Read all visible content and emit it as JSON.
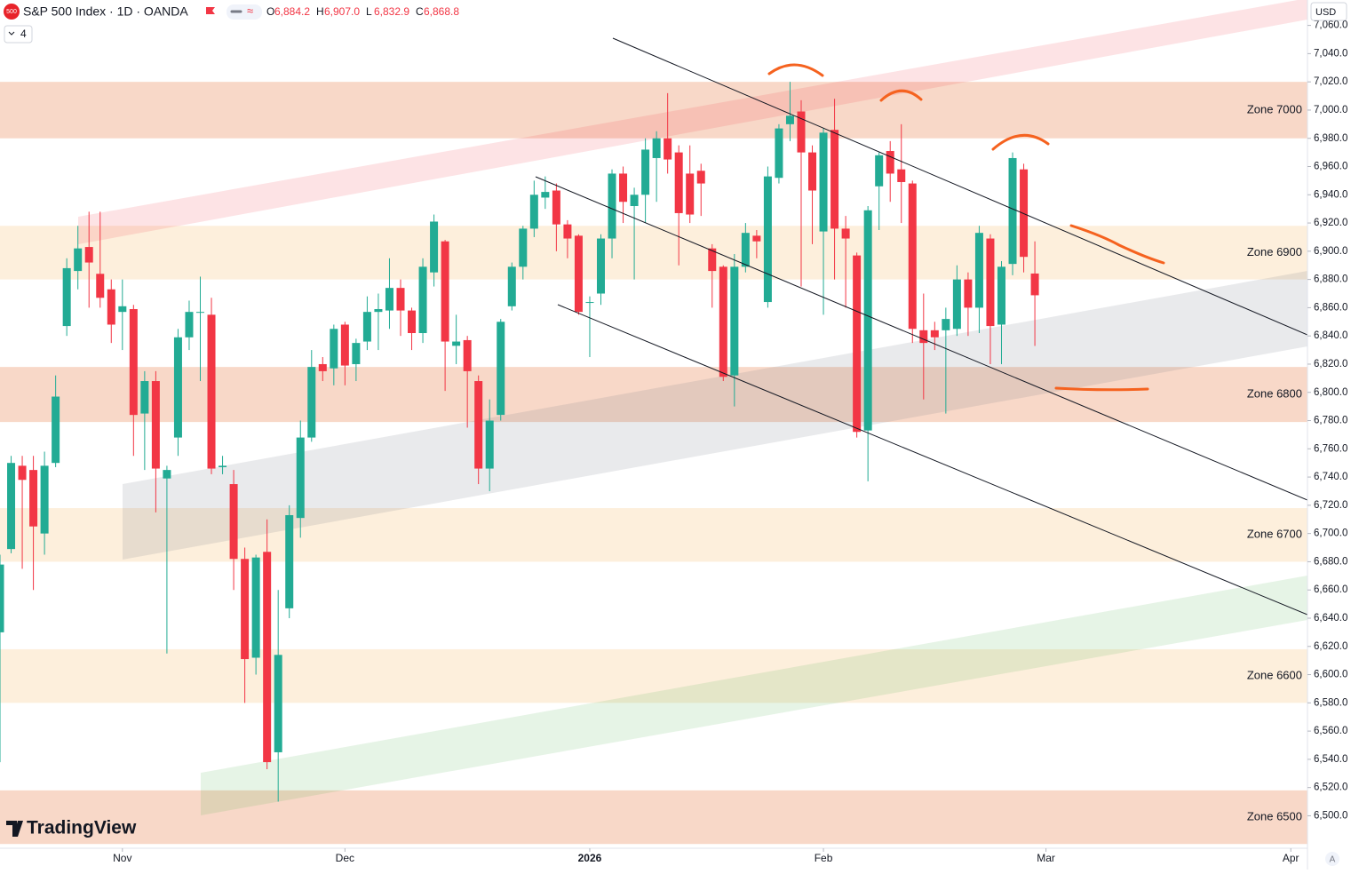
{
  "header": {
    "badge": "500",
    "symbol": "S&P 500 Index · 1D · OANDA",
    "ohlc": [
      {
        "key": "O",
        "value": "6,884.2"
      },
      {
        "key": "H",
        "value": "6,907.0"
      },
      {
        "key": "L",
        "value": "6,832.9"
      },
      {
        "key": "C",
        "value": "6,868.8"
      }
    ],
    "indicator_count": "4",
    "currency": "USD",
    "logo": "TradingView",
    "scale_mode": "A"
  },
  "chart_data": {
    "type": "candlestick",
    "up_color": "#22ab94",
    "down_color": "#f23645",
    "x": [
      0,
      1,
      2,
      3,
      4,
      5,
      6,
      7,
      8,
      9,
      10,
      11,
      12,
      13,
      14,
      15,
      16,
      17,
      18,
      19,
      20,
      21,
      22,
      23,
      24,
      25,
      26,
      27,
      28,
      29,
      30,
      31,
      32,
      33,
      34,
      35,
      36,
      37,
      38,
      39,
      40,
      41,
      42,
      43,
      44,
      45,
      46,
      47,
      48,
      49,
      50,
      51,
      52,
      53,
      54,
      55,
      56,
      57,
      58,
      59,
      60,
      61,
      62,
      63,
      64,
      65,
      66,
      67,
      68,
      69,
      70,
      71,
      72,
      73,
      74,
      75,
      76,
      77,
      78,
      79,
      80,
      81,
      82,
      83,
      84,
      85,
      86,
      87,
      88,
      89,
      90,
      91,
      92,
      93
    ],
    "open": [
      6630,
      6689,
      6748,
      6745,
      6700,
      6750,
      6847,
      6886,
      6903,
      6884,
      6873,
      6857,
      6859,
      6785,
      6808,
      6739,
      6768,
      6839,
      6857,
      6855,
      6747,
      6735,
      6682,
      6612,
      6687,
      6545,
      6647,
      6711,
      6768,
      6820,
      6817,
      6848,
      6820,
      6836,
      6857,
      6858,
      6874,
      6858,
      6842,
      6885,
      6907,
      6833,
      6837,
      6808,
      6746,
      6784,
      6861,
      6889,
      6916,
      6938,
      6943,
      6919,
      6911,
      6864,
      6870,
      6909,
      6955,
      6932,
      6940,
      6966,
      6980,
      6970,
      6955,
      6957,
      6902,
      6889,
      6812,
      6889,
      6911,
      6864,
      6952,
      6990,
      6999,
      6970,
      6914,
      6986,
      6916,
      6897,
      6773,
      6946,
      6971,
      6958,
      6948,
      6844,
      6844,
      6844,
      6845,
      6880,
      6860,
      6909,
      6848,
      6891,
      6958,
      6884.2
    ],
    "high": [
      6685,
      6755,
      6755,
      6755,
      6758,
      6812,
      6895,
      6918,
      6928,
      6928,
      6880,
      6880,
      6862,
      6815,
      6815,
      6748,
      6845,
      6865,
      6882,
      6867,
      6755,
      6745,
      6690,
      6685,
      6710,
      6660,
      6720,
      6780,
      6830,
      6825,
      6848,
      6850,
      6838,
      6868,
      6870,
      6895,
      6880,
      6860,
      6895,
      6926,
      6908,
      6855,
      6840,
      6812,
      6795,
      6852,
      6892,
      6918,
      6950,
      6953,
      6948,
      6922,
      6912,
      6868,
      6912,
      6958,
      6960,
      6945,
      6980,
      6985,
      7012,
      6975,
      6975,
      6962,
      6905,
      6890,
      6898,
      6920,
      6915,
      6960,
      6990,
      7020,
      7007,
      6975,
      6987,
      7008,
      6925,
      6899,
      6932,
      6970,
      6978,
      6990,
      6950,
      6870,
      6850,
      6860,
      6890,
      6885,
      6918,
      6912,
      6893,
      6970,
      6962,
      6907
    ],
    "low": [
      6538,
      6686,
      6675,
      6660,
      6685,
      6747,
      6840,
      6873,
      6860,
      6860,
      6835,
      6830,
      6755,
      6745,
      6715,
      6615,
      6755,
      6830,
      6808,
      6742,
      6742,
      6660,
      6580,
      6600,
      6533,
      6510,
      6640,
      6697,
      6765,
      6808,
      6805,
      6805,
      6808,
      6830,
      6830,
      6845,
      6840,
      6830,
      6835,
      6875,
      6801,
      6820,
      6775,
      6735,
      6730,
      6780,
      6858,
      6880,
      6910,
      6930,
      6900,
      6895,
      6855,
      6825,
      6862,
      6895,
      6920,
      6880,
      6920,
      6935,
      6955,
      6890,
      6920,
      6925,
      6860,
      6808,
      6790,
      6885,
      6895,
      6860,
      6948,
      6978,
      6875,
      6905,
      6855,
      6880,
      6860,
      6768,
      6737,
      6915,
      6935,
      6920,
      6835,
      6795,
      6830,
      6785,
      6840,
      6840,
      6842,
      6820,
      6820,
      6883,
      6885,
      6832.9
    ],
    "close": [
      6678,
      6750,
      6738,
      6705,
      6748,
      6797,
      6888,
      6902,
      6892,
      6867,
      6848,
      6861,
      6784,
      6808,
      6746,
      6745,
      6839,
      6857,
      6857,
      6746,
      6748,
      6682,
      6611,
      6683,
      6538,
      6614,
      6713,
      6768,
      6818,
      6815,
      6845,
      6819,
      6835,
      6857,
      6859,
      6874,
      6858,
      6842,
      6889,
      6921,
      6836,
      6836,
      6815,
      6746,
      6780,
      6850,
      6889,
      6916,
      6940,
      6942,
      6919,
      6909,
      6857,
      6864,
      6909,
      6955,
      6935,
      6940,
      6972,
      6980,
      6965,
      6927,
      6926,
      6948,
      6886,
      6811,
      6889,
      6913,
      6907,
      6953,
      6987,
      6996,
      6970,
      6943,
      6984,
      6916,
      6909,
      6772,
      6929,
      6968,
      6955,
      6949,
      6845,
      6835,
      6839,
      6852,
      6880,
      6860,
      6913,
      6847,
      6889,
      6966,
      6896,
      6868.8
    ],
    "zones": [
      {
        "label": "Zone 7000",
        "low": 6980,
        "high": 7020,
        "color": "#f8d8c8"
      },
      {
        "label": "Zone 6900",
        "low": 6880,
        "high": 6918,
        "color": "#fdefdc"
      },
      {
        "label": "Zone 6800",
        "low": 6779,
        "high": 6818,
        "color": "#f8d8c8"
      },
      {
        "label": "Zone 6700",
        "low": 6680,
        "high": 6718,
        "color": "#fdefdc"
      },
      {
        "label": "Zone 6600",
        "low": 6580,
        "high": 6618,
        "color": "#fdefdc"
      },
      {
        "label": "Zone 6500",
        "low": 6480,
        "high": 6518,
        "color": "#f8d8c8"
      }
    ],
    "xlim": [
      0,
      117.5
    ],
    "ylim": [
      6477,
      7078
    ],
    "xticks": [
      {
        "value": 11,
        "label": "Nov"
      },
      {
        "value": 31,
        "label": "Dec"
      },
      {
        "value": 53,
        "label": "2026"
      },
      {
        "value": 74,
        "label": "Feb"
      },
      {
        "value": 94,
        "label": "Mar"
      },
      {
        "value": 116,
        "label": "Apr"
      }
    ],
    "yticks": [
      {
        "value": 6500,
        "label": "6,500.0"
      },
      {
        "value": 6520,
        "label": "6,520.0"
      },
      {
        "value": 6540,
        "label": "6,540.0"
      },
      {
        "value": 6560,
        "label": "6,560.0"
      },
      {
        "value": 6580,
        "label": "6,580.0"
      },
      {
        "value": 6600,
        "label": "6,600.0"
      },
      {
        "value": 6620,
        "label": "6,620.0"
      },
      {
        "value": 6640,
        "label": "6,640.0"
      },
      {
        "value": 6660,
        "label": "6,660.0"
      },
      {
        "value": 6680,
        "label": "6,680.0"
      },
      {
        "value": 6700,
        "label": "6,700.0"
      },
      {
        "value": 6720,
        "label": "6,720.0"
      },
      {
        "value": 6740,
        "label": "6,740.0"
      },
      {
        "value": 6760,
        "label": "6,760.0"
      },
      {
        "value": 6780,
        "label": "6,780.0"
      },
      {
        "value": 6800,
        "label": "6,800.0"
      },
      {
        "value": 6820,
        "label": "6,820.0"
      },
      {
        "value": 6840,
        "label": "6,840.0"
      },
      {
        "value": 6860,
        "label": "6,860.0"
      },
      {
        "value": 6880,
        "label": "6,880.0"
      },
      {
        "value": 6900,
        "label": "6,900.0"
      },
      {
        "value": 6920,
        "label": "6,920.0"
      },
      {
        "value": 6940,
        "label": "6,940.0"
      },
      {
        "value": 6960,
        "label": "6,960.0"
      },
      {
        "value": 6980,
        "label": "6,980.0"
      },
      {
        "value": 7000,
        "label": "7,000.0"
      },
      {
        "value": 7020,
        "label": "7,020.0"
      },
      {
        "value": 7040,
        "label": "7,040.0"
      },
      {
        "value": 7060,
        "label": "7,060.0"
      }
    ]
  }
}
